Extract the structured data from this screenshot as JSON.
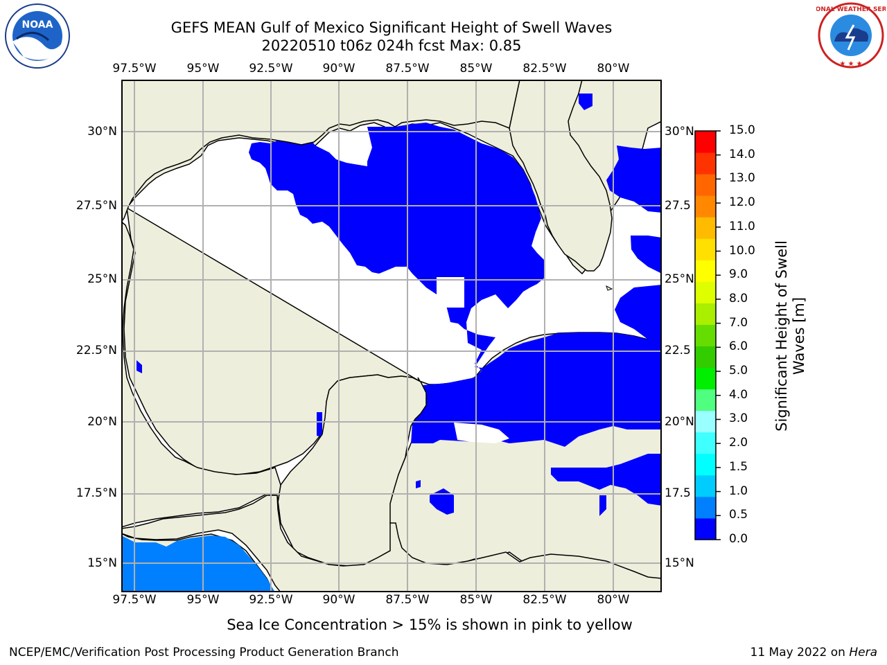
{
  "title": {
    "line1": "GEFS MEAN Gulf of Mexico Significant Height of Swell Waves",
    "line2": "20220510 t06z 024h fcst   Max: 0.85"
  },
  "map": {
    "x_ticks": [
      "97.5°W",
      "95°W",
      "92.5°W",
      "90°W",
      "87.5°W",
      "85°W",
      "82.5°W",
      "80°W"
    ],
    "y_ticks_left": [
      "30°N",
      "27.5°N",
      "25°N",
      "22.5°N",
      "20°N",
      "17.5°N",
      "15°N"
    ],
    "y_ticks_right": [
      "30°N",
      "27.5",
      "25°N",
      "22.5",
      "20°N",
      "17.5",
      "15°N"
    ],
    "land_color": "#eeeedc",
    "ocean_color": "#ffffff",
    "grid_color": "#b0b0b0"
  },
  "colorbar": {
    "label": "Significant Height of Swell Waves [m]",
    "ticks": [
      "15.0",
      "14.0",
      "13.0",
      "12.0",
      "11.0",
      "10.0",
      "9.0",
      "8.0",
      "7.0",
      "6.0",
      "5.0",
      "4.0",
      "3.0",
      "2.0",
      "1.5",
      "1.0",
      "0.5",
      "0.0"
    ],
    "colors_bottom_to_top": [
      "#0000ff",
      "#0080ff",
      "#00ccff",
      "#00ffff",
      "#40ffff",
      "#99ffff",
      "#50ff80",
      "#00ee00",
      "#33cc00",
      "#66dd00",
      "#aaee00",
      "#ddff00",
      "#ffff00",
      "#ffe000",
      "#ffbb00",
      "#ff8800",
      "#ff6600",
      "#ff3300",
      "#ff0000"
    ]
  },
  "legend_colors": {
    "swell_0_05": "#0000ff",
    "swell_05_10": "#0080ff"
  },
  "note": "Sea Ice Concentration > 15% is shown in pink to yellow",
  "footer": {
    "left": "NCEP/EMC/Verification Post Processing Product Generation Branch",
    "right_date": "11 May 2022 on ",
    "right_host": "Hera"
  },
  "logos": {
    "noaa": "NOAA",
    "nws": "NATIONAL WEATHER SERVICE"
  }
}
